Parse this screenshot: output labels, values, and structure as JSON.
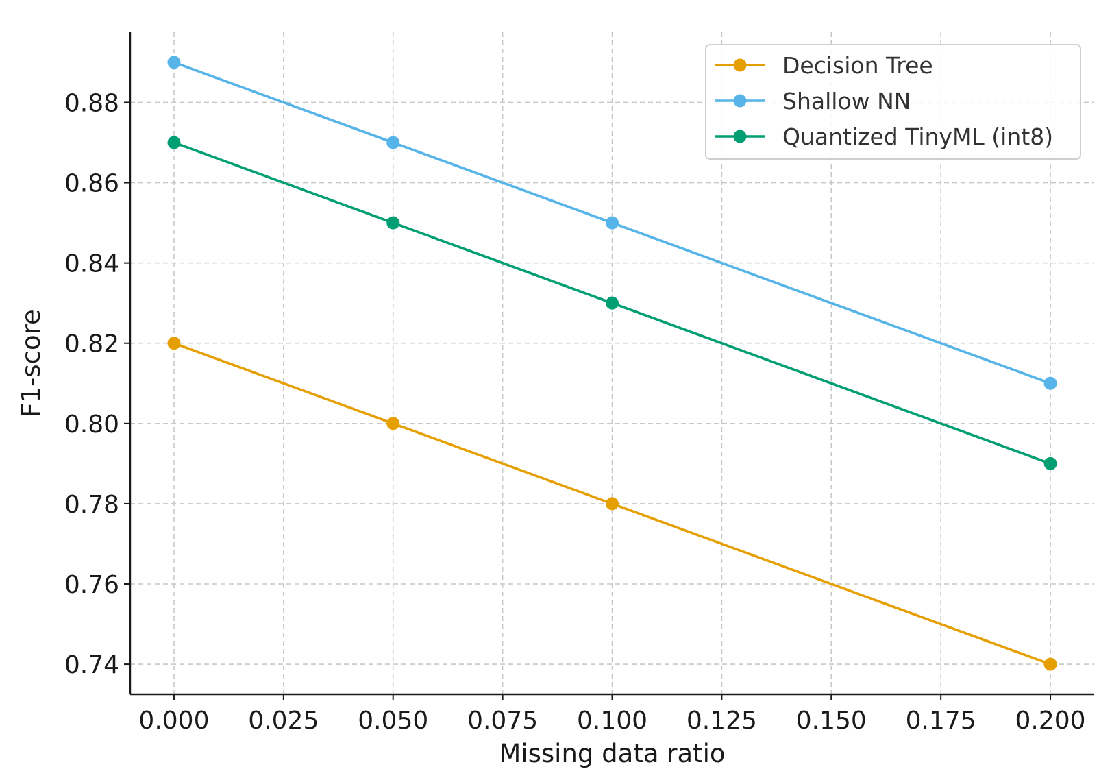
{
  "chart_data": {
    "type": "line",
    "title": "",
    "xlabel": "Missing data ratio",
    "ylabel": "F1-score",
    "x": [
      0.0,
      0.05,
      0.1,
      0.2
    ],
    "xlim": [
      -0.01,
      0.21
    ],
    "ylim": [
      0.7325,
      0.8975
    ],
    "xticks": [
      "0.000",
      "0.025",
      "0.050",
      "0.075",
      "0.100",
      "0.125",
      "0.150",
      "0.175",
      "0.200"
    ],
    "yticks": [
      "0.74",
      "0.76",
      "0.78",
      "0.80",
      "0.82",
      "0.84",
      "0.86",
      "0.88"
    ],
    "grid": true,
    "legend_position": "top-right",
    "series": [
      {
        "name": "Decision Tree",
        "color": "#E69F00",
        "values": [
          0.82,
          0.8,
          0.78,
          0.74
        ]
      },
      {
        "name": "Shallow NN",
        "color": "#56B4E9",
        "values": [
          0.89,
          0.87,
          0.85,
          0.81
        ]
      },
      {
        "name": "Quantized TinyML (int8)",
        "color": "#009E73",
        "values": [
          0.87,
          0.85,
          0.83,
          0.79
        ]
      }
    ]
  }
}
